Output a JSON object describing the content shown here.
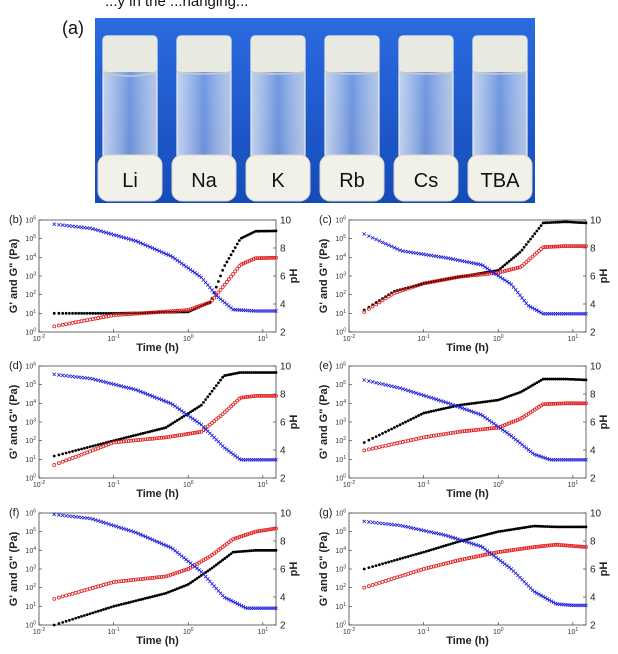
{
  "caption_fragment": "...y in the ...hanging...",
  "photo": {
    "panel_label": "(a)",
    "vials": [
      "Li",
      "Na",
      "K",
      "Rb",
      "Cs",
      "TBA"
    ],
    "colors": {
      "background": "#1f5fd1",
      "cap": "#f1f1ea",
      "gel": "#e8e9e0"
    }
  },
  "colors": {
    "g_prime": "#000000",
    "g_double_prime": "#e01b1b",
    "ph": "#1b1bdd"
  },
  "chart_data": [
    {
      "panel": "(b)",
      "type": "scatter",
      "xlabel": "Time (h)",
      "ylabel": "G' and G\" (Pa)",
      "y2label": "pH",
      "x_scale": "log",
      "xlim": [
        0.01,
        15
      ],
      "ylim": [
        1,
        1000000
      ],
      "y2lim": [
        2,
        10
      ],
      "x_ticks": [
        "10-2",
        "10-1",
        "100",
        "101"
      ],
      "y_ticks": [
        "100",
        "101",
        "102",
        "103",
        "104",
        "105",
        "106"
      ],
      "y2_ticks": [
        "2",
        "4",
        "6",
        "8",
        "10"
      ],
      "series": [
        {
          "key": "g_prime",
          "marker": "filled",
          "x": [
            0.016,
            0.1,
            1,
            2,
            3,
            5,
            8,
            15
          ],
          "y": [
            10,
            10,
            12,
            40,
            3000,
            100000,
            250000,
            260000
          ]
        },
        {
          "key": "g_double_prime",
          "marker": "open",
          "x": [
            0.016,
            0.1,
            1,
            2,
            3,
            5,
            8,
            15
          ],
          "y": [
            2,
            8,
            15,
            40,
            300,
            4000,
            9000,
            9500
          ]
        },
        {
          "key": "ph",
          "marker": "cross",
          "axis": "y2",
          "x": [
            0.016,
            0.05,
            0.2,
            0.6,
            1.5,
            2.5,
            4,
            8,
            15
          ],
          "y": [
            9.7,
            9.4,
            8.5,
            7.4,
            5.9,
            4.5,
            3.6,
            3.5,
            3.5
          ]
        }
      ]
    },
    {
      "panel": "(c)",
      "type": "scatter",
      "xlabel": "Time (h)",
      "ylabel": "G' and G\" (Pa)",
      "y2label": "pH",
      "x_scale": "log",
      "xlim": [
        0.01,
        15
      ],
      "ylim": [
        1,
        1000000
      ],
      "y2lim": [
        2,
        10
      ],
      "x_ticks": [
        "10-2",
        "10-1",
        "100",
        "101"
      ],
      "y_ticks": [
        "100",
        "101",
        "102",
        "103",
        "104",
        "105",
        "106"
      ],
      "y2_ticks": [
        "2",
        "4",
        "6",
        "8",
        "10"
      ],
      "series": [
        {
          "key": "g_prime",
          "marker": "filled",
          "x": [
            0.016,
            0.04,
            0.1,
            0.3,
            1,
            2,
            4,
            8,
            15
          ],
          "y": [
            15,
            150,
            400,
            900,
            2000,
            20000,
            700000,
            800000,
            700000
          ]
        },
        {
          "key": "g_double_prime",
          "marker": "open",
          "x": [
            0.016,
            0.04,
            0.1,
            0.3,
            1,
            2,
            4,
            8,
            15
          ],
          "y": [
            12,
            120,
            400,
            900,
            1500,
            3000,
            35000,
            40000,
            40000
          ]
        },
        {
          "key": "ph",
          "marker": "cross",
          "axis": "y2",
          "x": [
            0.016,
            0.05,
            0.2,
            0.6,
            1.5,
            2.5,
            4,
            8,
            15
          ],
          "y": [
            9.0,
            7.8,
            7.3,
            6.8,
            5.4,
            3.9,
            3.3,
            3.3,
            3.3
          ]
        }
      ]
    },
    {
      "panel": "(d)",
      "type": "scatter",
      "xlabel": "Time (h)",
      "ylabel": "G' and G\" (Pa)",
      "y2label": "pH",
      "x_scale": "log",
      "xlim": [
        0.01,
        15
      ],
      "ylim": [
        1,
        1000000
      ],
      "y2lim": [
        2,
        10
      ],
      "x_ticks": [
        "10-2",
        "10-1",
        "100",
        "101"
      ],
      "y_ticks": [
        "100",
        "101",
        "102",
        "103",
        "104",
        "105",
        "106"
      ],
      "y2_ticks": [
        "2",
        "4",
        "6",
        "8",
        "10"
      ],
      "series": [
        {
          "key": "g_prime",
          "marker": "filled",
          "x": [
            0.016,
            0.1,
            0.5,
            1.5,
            3,
            5,
            8,
            15
          ],
          "y": [
            15,
            100,
            500,
            8000,
            300000,
            450000,
            450000,
            450000
          ]
        },
        {
          "key": "g_double_prime",
          "marker": "open",
          "x": [
            0.016,
            0.1,
            0.5,
            1.5,
            3,
            5,
            8,
            15
          ],
          "y": [
            5,
            80,
            150,
            300,
            3000,
            20000,
            25000,
            25000
          ]
        },
        {
          "key": "ph",
          "marker": "cross",
          "axis": "y2",
          "x": [
            0.016,
            0.05,
            0.2,
            0.6,
            1.5,
            3,
            5,
            10,
            15
          ],
          "y": [
            9.4,
            9.1,
            8.3,
            7.3,
            5.8,
            4.2,
            3.3,
            3.3,
            3.3
          ]
        }
      ]
    },
    {
      "panel": "(e)",
      "type": "scatter",
      "xlabel": "Time (h)",
      "ylabel": "G' and G\" (Pa)",
      "y2label": "pH",
      "x_scale": "log",
      "xlim": [
        0.01,
        15
      ],
      "ylim": [
        1,
        1000000
      ],
      "y2lim": [
        2,
        10
      ],
      "x_ticks": [
        "10-2",
        "10-1",
        "100",
        "101"
      ],
      "y_ticks": [
        "100",
        "101",
        "102",
        "103",
        "104",
        "105",
        "106"
      ],
      "y2_ticks": [
        "2",
        "4",
        "6",
        "8",
        "10"
      ],
      "series": [
        {
          "key": "g_prime",
          "marker": "filled",
          "x": [
            0.016,
            0.1,
            0.3,
            1,
            2,
            4,
            8,
            15
          ],
          "y": [
            80,
            3000,
            8000,
            15000,
            40000,
            200000,
            200000,
            180000
          ]
        },
        {
          "key": "g_double_prime",
          "marker": "open",
          "x": [
            0.016,
            0.1,
            0.3,
            1,
            2,
            4,
            8,
            15
          ],
          "y": [
            30,
            150,
            300,
            500,
            1500,
            9000,
            10000,
            10000
          ]
        },
        {
          "key": "ph",
          "marker": "cross",
          "axis": "y2",
          "x": [
            0.016,
            0.05,
            0.2,
            0.6,
            1.5,
            3,
            5,
            10,
            15
          ],
          "y": [
            9.0,
            8.4,
            7.4,
            6.5,
            5.0,
            3.7,
            3.3,
            3.3,
            3.3
          ]
        }
      ]
    },
    {
      "panel": "(f)",
      "type": "scatter",
      "xlabel": "Time (h)",
      "ylabel": "G' and G\" (Pa)",
      "y2label": "pH",
      "x_scale": "log",
      "xlim": [
        0.01,
        15
      ],
      "ylim": [
        1,
        1000000
      ],
      "y2lim": [
        2,
        10
      ],
      "x_ticks": [
        "10-2",
        "10-1",
        "100",
        "101"
      ],
      "y_ticks": [
        "100",
        "101",
        "102",
        "103",
        "104",
        "105",
        "106"
      ],
      "y2_ticks": [
        "2",
        "4",
        "6",
        "8",
        "10"
      ],
      "series": [
        {
          "key": "g_prime",
          "marker": "filled",
          "x": [
            0.016,
            0.1,
            0.5,
            1,
            2,
            4,
            8,
            15
          ],
          "y": [
            1,
            10,
            50,
            150,
            1000,
            8000,
            10000,
            10000
          ]
        },
        {
          "key": "g_double_prime",
          "marker": "open",
          "x": [
            0.016,
            0.1,
            0.5,
            1,
            2,
            4,
            8,
            15
          ],
          "y": [
            25,
            200,
            400,
            1000,
            5000,
            40000,
            100000,
            150000
          ]
        },
        {
          "key": "ph",
          "marker": "cross",
          "axis": "y2",
          "x": [
            0.016,
            0.05,
            0.2,
            0.6,
            1.5,
            3,
            6,
            10,
            15
          ],
          "y": [
            9.9,
            9.6,
            8.6,
            7.5,
            5.8,
            4.0,
            3.2,
            3.2,
            3.2
          ]
        }
      ]
    },
    {
      "panel": "(g)",
      "type": "scatter",
      "xlabel": "Time (h)",
      "ylabel": "G' and G\" (Pa)",
      "y2label": "pH",
      "x_scale": "log",
      "xlim": [
        0.01,
        15
      ],
      "ylim": [
        1,
        1000000
      ],
      "y2lim": [
        2,
        10
      ],
      "x_ticks": [
        "10-2",
        "10-1",
        "100",
        "101"
      ],
      "y_ticks": [
        "100",
        "101",
        "102",
        "103",
        "104",
        "105",
        "106"
      ],
      "y2_ticks": [
        "2",
        "4",
        "6",
        "8",
        "10"
      ],
      "series": [
        {
          "key": "g_prime",
          "marker": "filled",
          "x": [
            0.016,
            0.1,
            0.3,
            1,
            3,
            6,
            15
          ],
          "y": [
            1000,
            8000,
            30000,
            100000,
            200000,
            180000,
            180000
          ]
        },
        {
          "key": "g_double_prime",
          "marker": "open",
          "x": [
            0.016,
            0.1,
            0.3,
            1,
            3,
            6,
            15
          ],
          "y": [
            100,
            1000,
            3000,
            8000,
            15000,
            20000,
            15000
          ]
        },
        {
          "key": "ph",
          "marker": "cross",
          "axis": "y2",
          "x": [
            0.016,
            0.05,
            0.2,
            0.6,
            1.5,
            3,
            6,
            10,
            15
          ],
          "y": [
            9.4,
            9.1,
            8.4,
            7.6,
            6.0,
            4.4,
            3.5,
            3.4,
            3.4
          ]
        }
      ]
    }
  ]
}
